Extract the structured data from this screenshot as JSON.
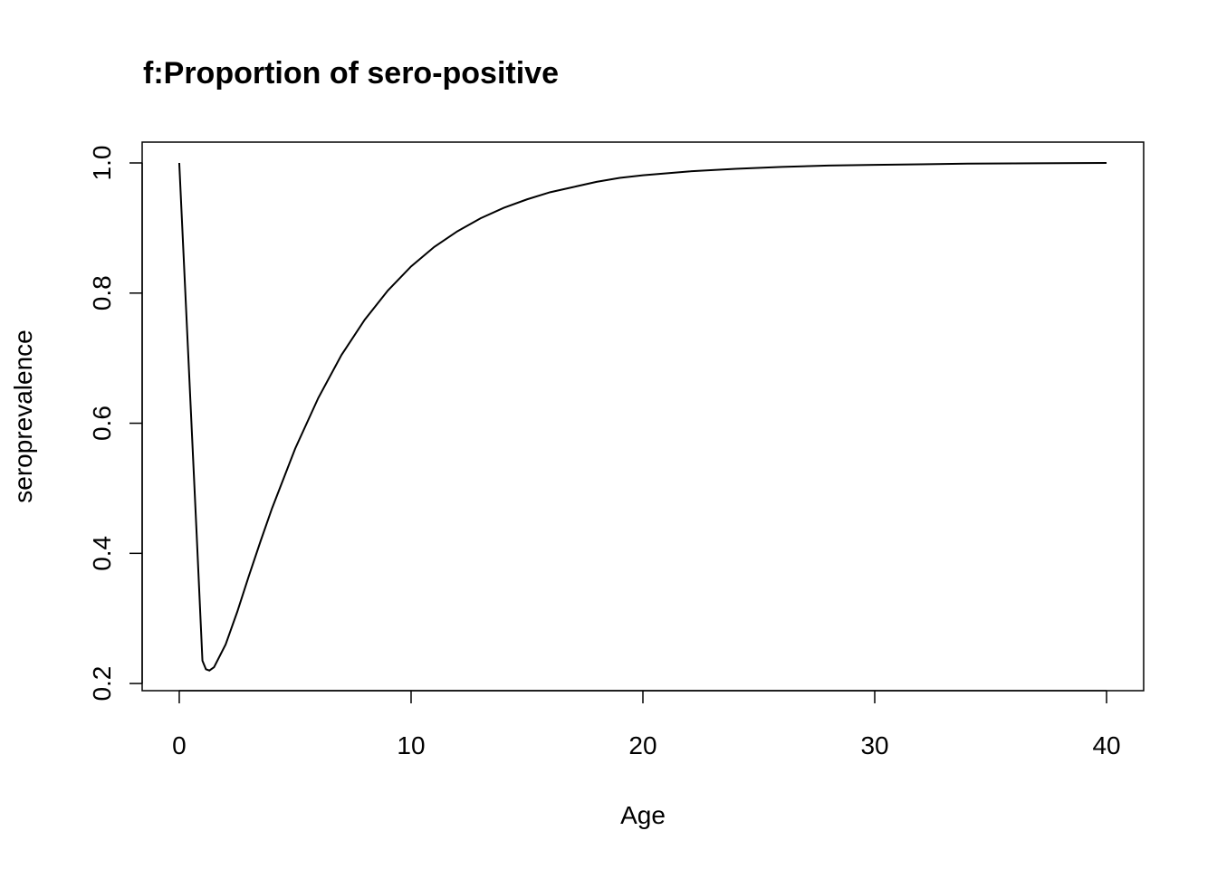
{
  "chart_data": {
    "type": "line",
    "title": "f:Proportion of sero-positive",
    "xlabel": "Age",
    "ylabel": "seroprevalence",
    "xlim": [
      -1.6,
      41.6
    ],
    "ylim": [
      0.189,
      1.032
    ],
    "xticks": [
      0,
      10,
      20,
      30,
      40
    ],
    "xtick_labels": [
      "0",
      "10",
      "20",
      "30",
      "40"
    ],
    "yticks": [
      0.2,
      0.4,
      0.6,
      0.8,
      1.0
    ],
    "ytick_labels": [
      "0.2",
      "0.4",
      "0.6",
      "0.8",
      "1.0"
    ],
    "grid": false,
    "legend": "none",
    "line_color": "#000000",
    "series": [
      {
        "x": [
          0,
          0.25,
          0.5,
          0.75,
          1.0,
          1.15,
          1.3,
          1.5,
          2,
          2.5,
          3,
          3.5,
          4,
          5,
          6,
          7,
          8,
          9,
          10,
          11,
          12,
          13,
          14,
          15,
          16,
          17,
          18,
          19,
          20,
          22,
          24,
          26,
          28,
          30,
          32,
          34,
          36,
          38,
          40
        ],
        "y": [
          1.0,
          0.81,
          0.62,
          0.43,
          0.235,
          0.222,
          0.22,
          0.225,
          0.26,
          0.31,
          0.365,
          0.418,
          0.469,
          0.561,
          0.639,
          0.705,
          0.759,
          0.804,
          0.841,
          0.871,
          0.895,
          0.915,
          0.931,
          0.944,
          0.955,
          0.963,
          0.971,
          0.977,
          0.981,
          0.987,
          0.991,
          0.994,
          0.996,
          0.997,
          0.998,
          0.999,
          0.9993,
          0.9996,
          1.0
        ]
      }
    ]
  }
}
